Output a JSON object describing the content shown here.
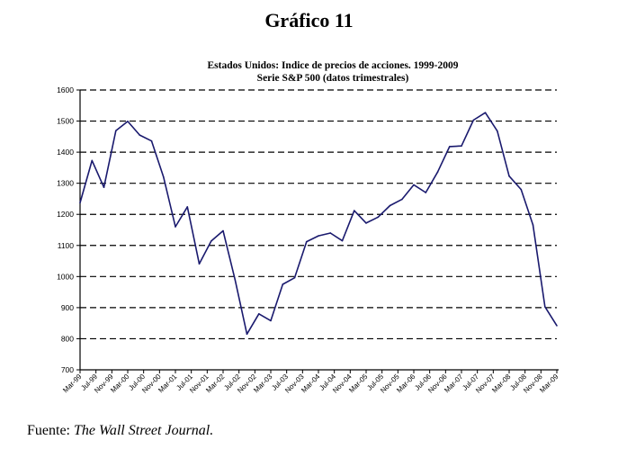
{
  "figure": {
    "title": "Gráfico 11",
    "source_label": "Fuente:",
    "source_name": "The Wall Street Journal."
  },
  "chart_data": {
    "type": "line",
    "title": "Estados Unidos: Indice de precios de acciones. 1999-2009",
    "subtitle": "Serie S&P 500  (datos trimestrales)",
    "xlabel": "",
    "ylabel": "",
    "ylim": [
      700,
      1600
    ],
    "yticks": [
      700,
      800,
      900,
      1000,
      1100,
      1200,
      1300,
      1400,
      1500,
      1600
    ],
    "grid": "horizontal dashed",
    "legend": "none",
    "line_color": "#1a1a6e",
    "xtick_labels": [
      "Mar-99",
      "Jul-99",
      "Nov-99",
      "Mar-00",
      "Jul-00",
      "Nov-00",
      "Mar-01",
      "Jul-01",
      "Nov-01",
      "Mar-02",
      "Jul-02",
      "Nov-02",
      "Mar-03",
      "Jul-03",
      "Nov-03",
      "Mar-04",
      "Jul-04",
      "Nov-04",
      "Mar-05",
      "Jul-05",
      "Nov-05",
      "Mar-06",
      "Jul-06",
      "Nov-06",
      "Mar-07",
      "Jul-07",
      "Nov-07",
      "Mar-08",
      "Jul-08",
      "Nov-08",
      "Mar-09"
    ],
    "series": [
      {
        "name": "S&P 500",
        "x": [
          "Mar-99",
          "Jun-99",
          "Sep-99",
          "Dec-99",
          "Mar-00",
          "Jun-00",
          "Sep-00",
          "Dec-00",
          "Mar-01",
          "Jun-01",
          "Sep-01",
          "Dec-01",
          "Mar-02",
          "Jun-02",
          "Sep-02",
          "Dec-02",
          "Mar-03",
          "Jun-03",
          "Sep-03",
          "Dec-03",
          "Mar-04",
          "Jun-04",
          "Sep-04",
          "Dec-04",
          "Mar-05",
          "Jun-05",
          "Sep-05",
          "Dec-05",
          "Mar-06",
          "Jun-06",
          "Sep-06",
          "Dec-06",
          "Mar-07",
          "Jun-07",
          "Sep-07",
          "Dec-07",
          "Mar-08",
          "Jun-08",
          "Sep-08",
          "Dec-08",
          "Mar-09"
        ],
        "values": [
          1237,
          1373,
          1287,
          1469,
          1499,
          1455,
          1436,
          1320,
          1160,
          1224,
          1041,
          1114,
          1147,
          990,
          815,
          880,
          858,
          975,
          996,
          1112,
          1131,
          1140,
          1115,
          1212,
          1172,
          1191,
          1228,
          1248,
          1295,
          1270,
          1336,
          1418,
          1420,
          1503,
          1527,
          1468,
          1323,
          1280,
          1166,
          903,
          842
        ]
      }
    ]
  }
}
